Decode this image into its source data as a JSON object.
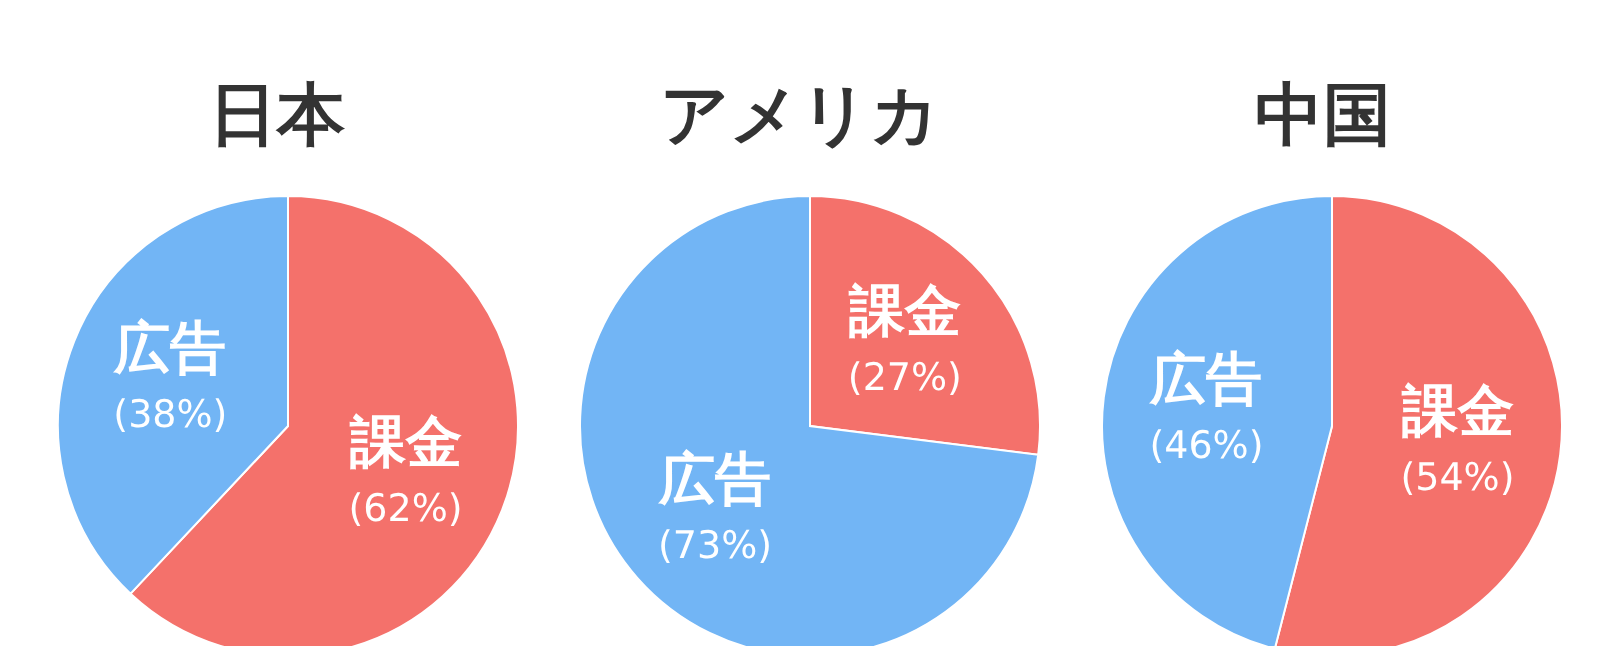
{
  "chart_data": [
    {
      "type": "pie",
      "title": "日本",
      "categories": [
        "課金",
        "広告"
      ],
      "values": [
        62,
        38
      ],
      "colors": [
        "#f4716b",
        "#72b5f5"
      ],
      "value_labels": [
        "(62%)",
        "(38%)"
      ]
    },
    {
      "type": "pie",
      "title": "アメリカ",
      "categories": [
        "課金",
        "広告"
      ],
      "values": [
        27,
        73
      ],
      "colors": [
        "#f4716b",
        "#72b5f5"
      ],
      "value_labels": [
        "(27%)",
        "(73%)"
      ]
    },
    {
      "type": "pie",
      "title": "中国",
      "categories": [
        "課金",
        "広告"
      ],
      "values": [
        54,
        46
      ],
      "colors": [
        "#f4716b",
        "#72b5f5"
      ],
      "value_labels": [
        "(54%)",
        "(46%)"
      ]
    }
  ]
}
